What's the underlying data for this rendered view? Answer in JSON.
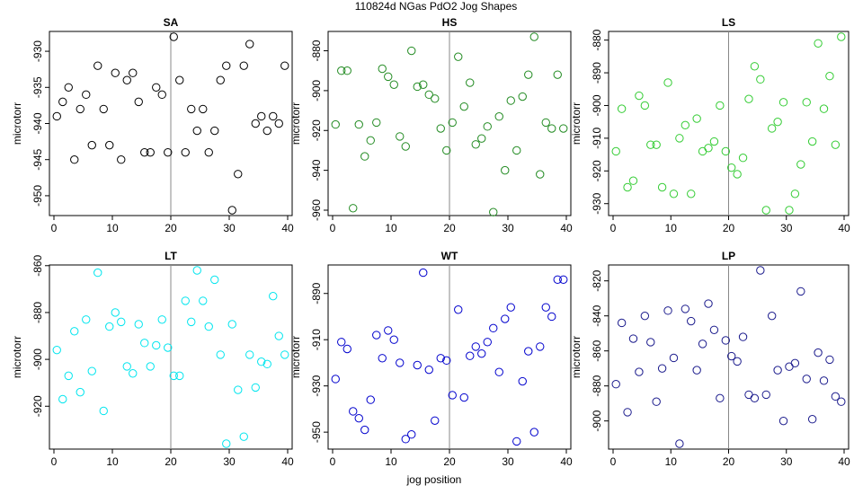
{
  "figure": {
    "title": "110824d   NGas PdO2 Jog Shapes",
    "xlabel": "jog position",
    "ylabel": "microtorr"
  },
  "chart_data": [
    {
      "type": "scatter",
      "title": "SA",
      "ylabel": "microtorr",
      "color": "#000000",
      "xlim": [
        0,
        40
      ],
      "ylim": [
        -952,
        -928
      ],
      "xticks": [
        0,
        10,
        20,
        30,
        40
      ],
      "yticks": [
        -930,
        -935,
        -940,
        -945,
        -950
      ],
      "vline": 20,
      "x": [
        0.5,
        1.5,
        2.5,
        3.5,
        4.5,
        5.5,
        6.5,
        7.5,
        8.5,
        9.5,
        10.5,
        11.5,
        12.5,
        13.5,
        14.5,
        15.5,
        16.5,
        17.5,
        18.5,
        19.5,
        20.5,
        21.5,
        22.5,
        23.5,
        24.5,
        25.5,
        26.5,
        27.5,
        28.5,
        29.5,
        30.5,
        31.5,
        32.5,
        33.5,
        34.5,
        35.5,
        36.5,
        37.5,
        38.5,
        39.5
      ],
      "y": [
        -939,
        -937,
        -935,
        -945,
        -938,
        -936,
        -943,
        -932,
        -938,
        -943,
        -933,
        -945,
        -934,
        -933,
        -937,
        -944,
        -944,
        -935,
        -936,
        -944,
        -928,
        -934,
        -944,
        -938,
        -941,
        -938,
        -944,
        -941,
        -934,
        -932,
        -952,
        -947,
        -932,
        -929,
        -940,
        -939,
        -941,
        -939,
        -940,
        -932
      ]
    },
    {
      "type": "scatter",
      "title": "HS",
      "ylabel": "microtorr",
      "color": "#228b22",
      "xlim": [
        0,
        40
      ],
      "ylim": [
        -960,
        -873
      ],
      "xticks": [
        0,
        10,
        20,
        30,
        40
      ],
      "yticks": [
        -880,
        -900,
        -920,
        -940,
        -960
      ],
      "vline": 20,
      "x": [
        0.5,
        1.5,
        2.5,
        3.5,
        4.5,
        5.5,
        6.5,
        7.5,
        8.5,
        9.5,
        10.5,
        11.5,
        12.5,
        13.5,
        14.5,
        15.5,
        16.5,
        17.5,
        18.5,
        19.5,
        20.5,
        21.5,
        22.5,
        23.5,
        24.5,
        25.5,
        26.5,
        27.5,
        28.5,
        29.5,
        30.5,
        31.5,
        32.5,
        33.5,
        34.5,
        35.5,
        36.5,
        37.5,
        38.5,
        39.5
      ],
      "y": [
        -917,
        -890,
        -890,
        -959,
        -917,
        -933,
        -925,
        -916,
        -889,
        -893,
        -897,
        -923,
        -928,
        -880,
        -898,
        -897,
        -902,
        -904,
        -919,
        -930,
        -916,
        -883,
        -908,
        -896,
        -927,
        -924,
        -918,
        -961,
        -913,
        -940,
        -905,
        -930,
        -903,
        -892,
        -873,
        -942,
        -916,
        -919,
        -892,
        -919
      ]
    },
    {
      "type": "scatter",
      "title": "LS",
      "ylabel": "microtorr",
      "color": "#33cc33",
      "xlim": [
        0,
        40
      ],
      "ylim": [
        -932,
        -879
      ],
      "xticks": [
        0,
        10,
        20,
        30,
        40
      ],
      "yticks": [
        -880,
        -890,
        -900,
        -910,
        -920,
        -930
      ],
      "vline": 20,
      "x": [
        0.5,
        1.5,
        2.5,
        3.5,
        4.5,
        5.5,
        6.5,
        7.5,
        8.5,
        9.5,
        10.5,
        11.5,
        12.5,
        13.5,
        14.5,
        15.5,
        16.5,
        17.5,
        18.5,
        19.5,
        20.5,
        21.5,
        22.5,
        23.5,
        24.5,
        25.5,
        26.5,
        27.5,
        28.5,
        29.5,
        30.5,
        31.5,
        32.5,
        33.5,
        34.5,
        35.5,
        36.5,
        37.5,
        38.5,
        39.5
      ],
      "y": [
        -914,
        -901,
        -925,
        -923,
        -897,
        -900,
        -912,
        -912,
        -925,
        -893,
        -927,
        -910,
        -906,
        -927,
        -904,
        -914,
        -913,
        -911,
        -900,
        -914,
        -919,
        -921,
        -916,
        -898,
        -888,
        -892,
        -932,
        -907,
        -905,
        -899,
        -932,
        -927,
        -918,
        -899,
        -911,
        -881,
        -901,
        -891,
        -912,
        -879
      ]
    },
    {
      "type": "scatter",
      "title": "LT",
      "ylabel": "microtorr",
      "color": "#00e5ee",
      "xlim": [
        0,
        40
      ],
      "ylim": [
        -936,
        -862
      ],
      "xticks": [
        0,
        10,
        20,
        30,
        40
      ],
      "yticks": [
        -860,
        -880,
        -900,
        -920
      ],
      "vline": 20,
      "x": [
        0.5,
        1.5,
        2.5,
        3.5,
        4.5,
        5.5,
        6.5,
        7.5,
        8.5,
        9.5,
        10.5,
        11.5,
        12.5,
        13.5,
        14.5,
        15.5,
        16.5,
        17.5,
        18.5,
        19.5,
        20.5,
        21.5,
        22.5,
        23.5,
        24.5,
        25.5,
        26.5,
        27.5,
        28.5,
        29.5,
        30.5,
        31.5,
        32.5,
        33.5,
        34.5,
        35.5,
        36.5,
        37.5,
        38.5,
        39.5
      ],
      "y": [
        -896,
        -917,
        -907,
        -888,
        -914,
        -883,
        -905,
        -863,
        -922,
        -886,
        -880,
        -884,
        -903,
        -906,
        -885,
        -893,
        -903,
        -894,
        -883,
        -895,
        -907,
        -907,
        -875,
        -884,
        -862,
        -875,
        -886,
        -866,
        -898,
        -936,
        -885,
        -913,
        -933,
        -898,
        -912,
        -901,
        -902,
        -873,
        -890,
        -898
      ]
    },
    {
      "type": "scatter",
      "title": "WT",
      "ylabel": "microtorr",
      "color": "#0000cd",
      "xlim": [
        0,
        40
      ],
      "ylim": [
        -955,
        -880
      ],
      "xticks": [
        0,
        10,
        20,
        30,
        40
      ],
      "yticks": [
        -890,
        -910,
        -930,
        -950
      ],
      "vline": 20,
      "x": [
        0.5,
        1.5,
        2.5,
        3.5,
        4.5,
        5.5,
        6.5,
        7.5,
        8.5,
        9.5,
        10.5,
        11.5,
        12.5,
        13.5,
        14.5,
        15.5,
        16.5,
        17.5,
        18.5,
        19.5,
        20.5,
        21.5,
        22.5,
        23.5,
        24.5,
        25.5,
        26.5,
        27.5,
        28.5,
        29.5,
        30.5,
        31.5,
        32.5,
        33.5,
        34.5,
        35.5,
        36.5,
        37.5,
        38.5,
        39.5
      ],
      "y": [
        -927,
        -911,
        -914,
        -941,
        -944,
        -949,
        -936,
        -908,
        -918,
        -906,
        -910,
        -920,
        -953,
        -951,
        -921,
        -881,
        -923,
        -945,
        -918,
        -919,
        -934,
        -897,
        -935,
        -917,
        -913,
        -916,
        -911,
        -905,
        -924,
        -901,
        -896,
        -954,
        -928,
        -915,
        -950,
        -913,
        -896,
        -900,
        -884,
        -884
      ]
    },
    {
      "type": "scatter",
      "title": "LP",
      "ylabel": "microtorr",
      "color": "#1a1a8c",
      "xlim": [
        0,
        40
      ],
      "ylim": [
        -913,
        -814
      ],
      "xticks": [
        0,
        10,
        20,
        30,
        40
      ],
      "yticks": [
        -820,
        -840,
        -860,
        -880,
        -900
      ],
      "vline": 20,
      "x": [
        0.5,
        1.5,
        2.5,
        3.5,
        4.5,
        5.5,
        6.5,
        7.5,
        8.5,
        9.5,
        10.5,
        11.5,
        12.5,
        13.5,
        14.5,
        15.5,
        16.5,
        17.5,
        18.5,
        19.5,
        20.5,
        21.5,
        22.5,
        23.5,
        24.5,
        25.5,
        26.5,
        27.5,
        28.5,
        29.5,
        30.5,
        31.5,
        32.5,
        33.5,
        34.5,
        35.5,
        36.5,
        37.5,
        38.5,
        39.5
      ],
      "y": [
        -879,
        -844,
        -895,
        -853,
        -872,
        -840,
        -855,
        -889,
        -870,
        -837,
        -864,
        -913,
        -836,
        -843,
        -871,
        -856,
        -833,
        -848,
        -887,
        -854,
        -863,
        -866,
        -852,
        -885,
        -887,
        -814,
        -885,
        -840,
        -871,
        -900,
        -869,
        -867,
        -826,
        -876,
        -899,
        -861,
        -877,
        -865,
        -886,
        -889
      ]
    }
  ]
}
